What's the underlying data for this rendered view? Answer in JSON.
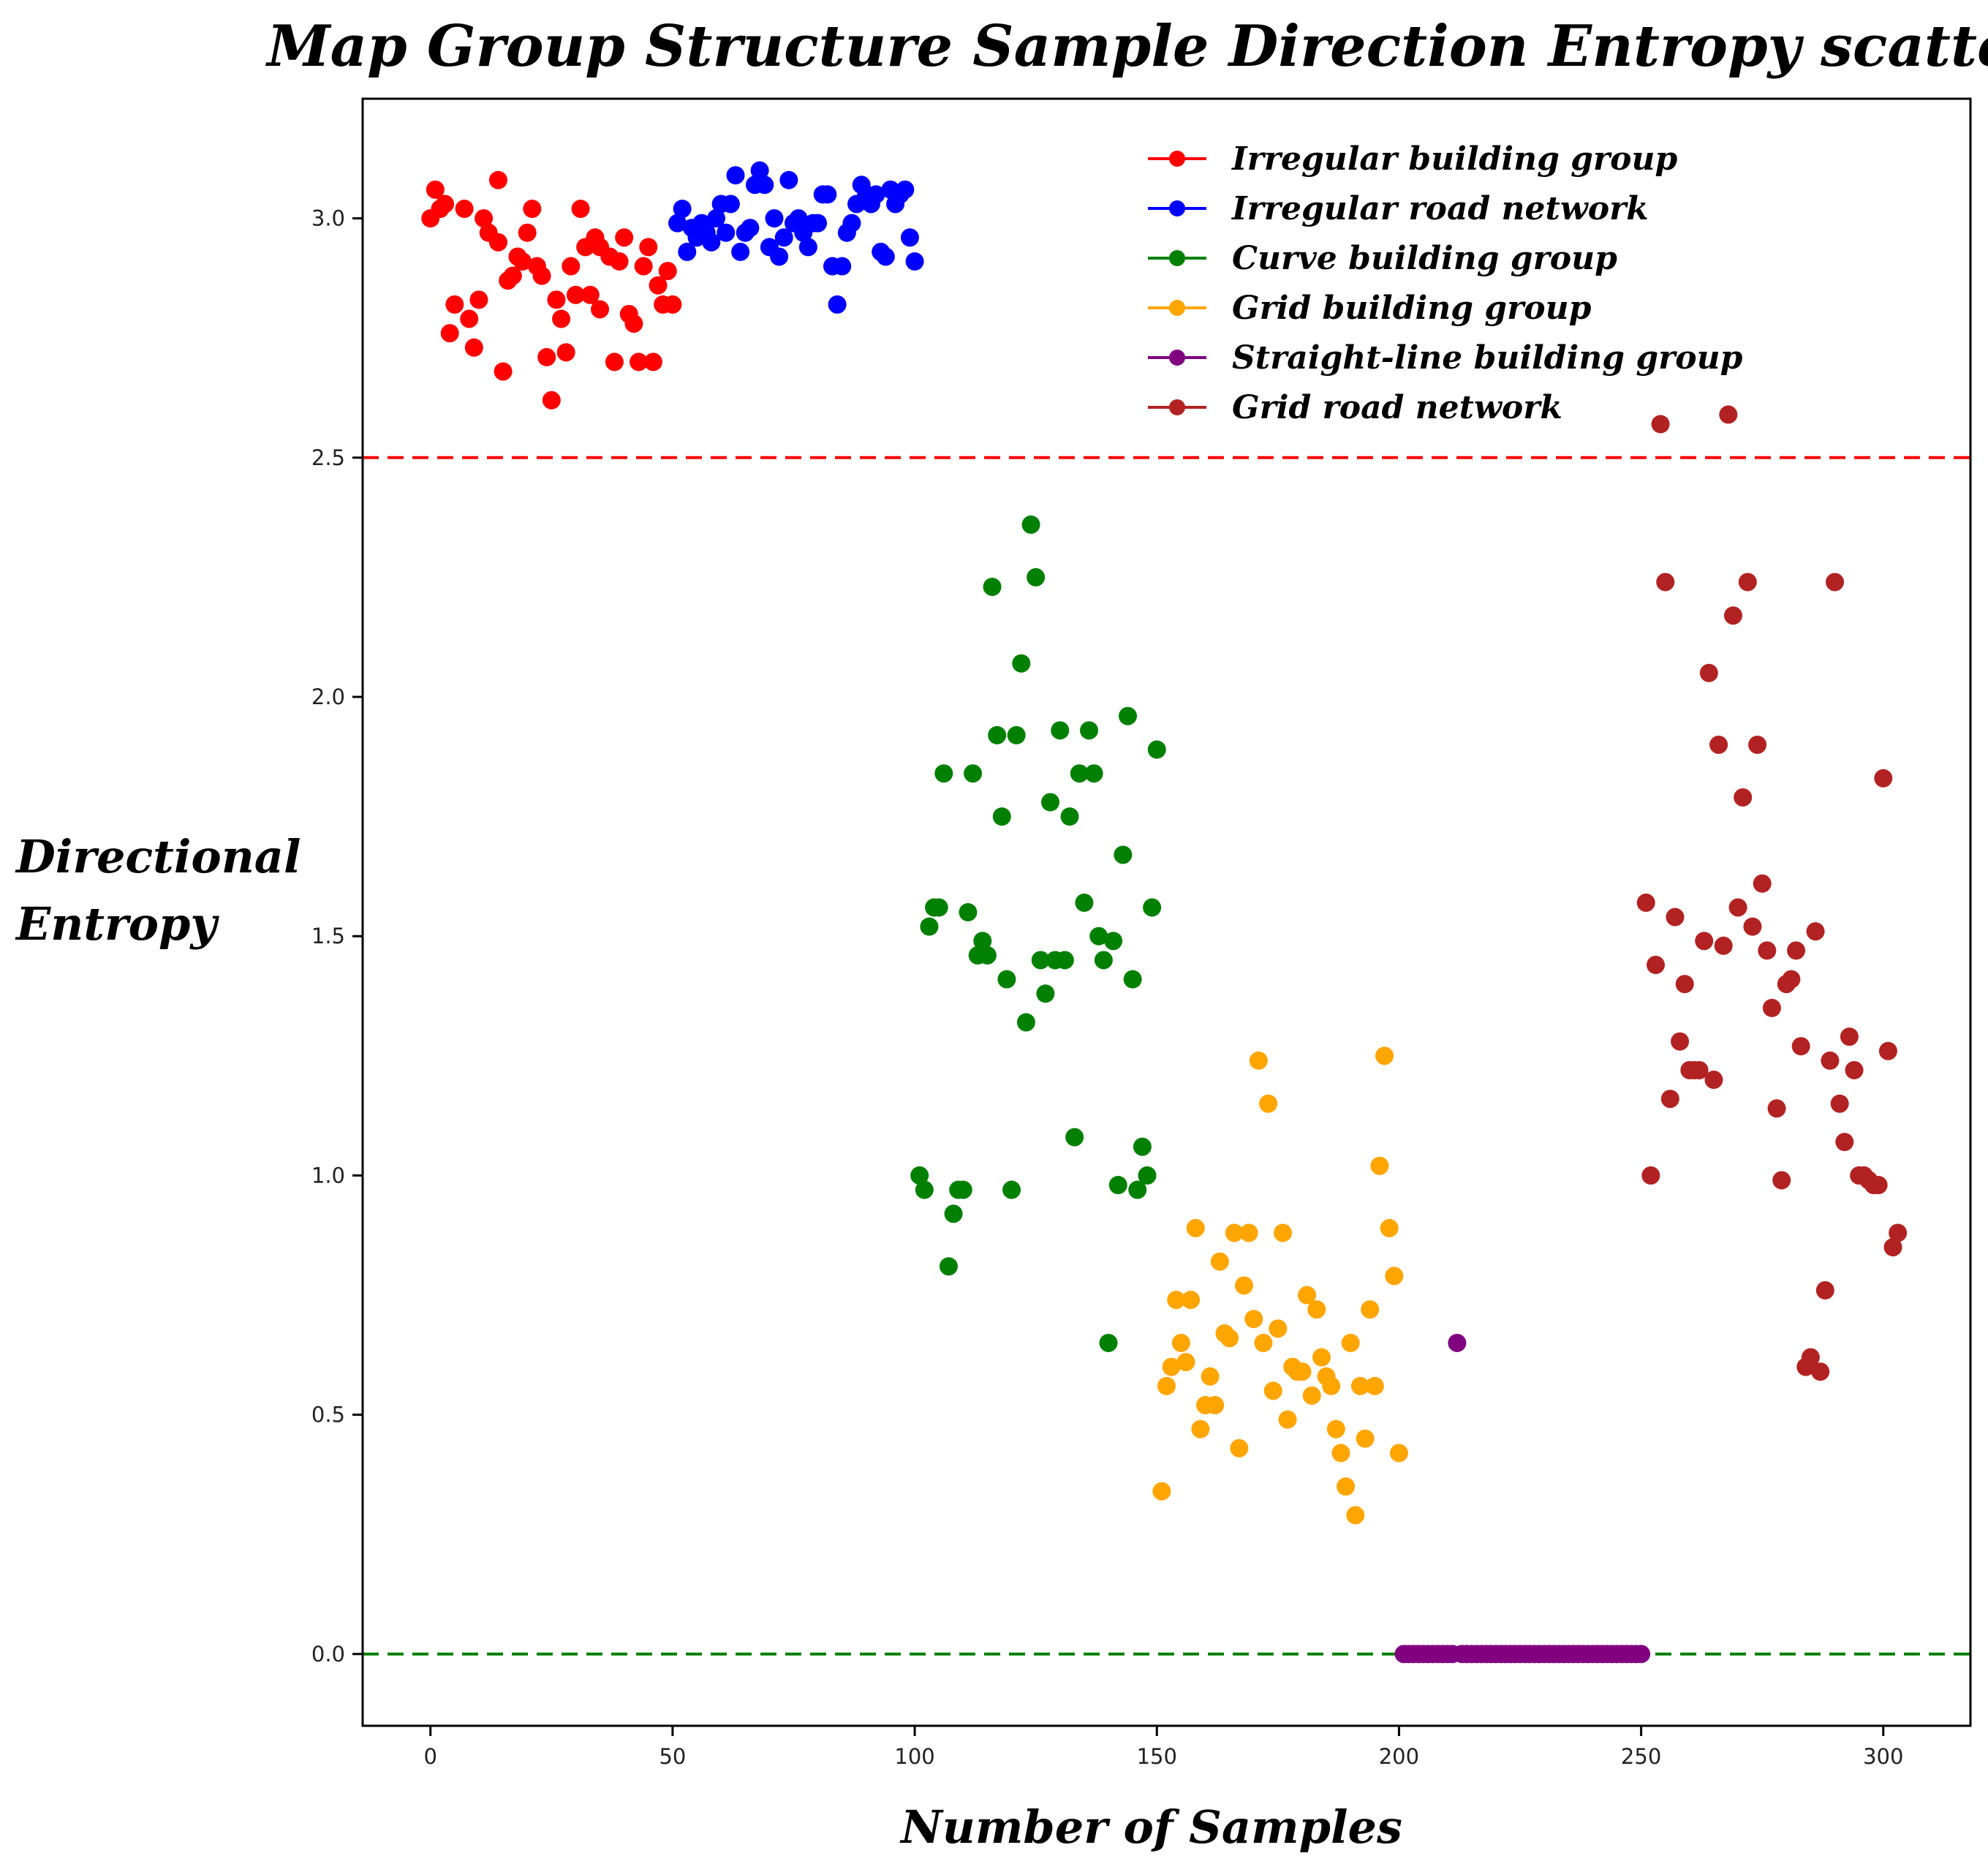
{
  "chart_data": {
    "type": "scatter",
    "title": "Map Group Structure Sample Direction Entropy scatter",
    "xlabel": "Number of Samples",
    "ylabel_lines": [
      "Directional",
      "Entropy"
    ],
    "xlim": [
      -14,
      318
    ],
    "ylim": [
      -0.15,
      3.25
    ],
    "xticks": [
      0,
      50,
      100,
      150,
      200,
      250,
      300
    ],
    "yticks": [
      0.0,
      0.5,
      1.0,
      1.5,
      2.0,
      2.5,
      3.0
    ],
    "xtick_labels": [
      "0",
      "50",
      "100",
      "150",
      "200",
      "250",
      "300"
    ],
    "ytick_labels": [
      "0.0",
      "0.5",
      "1.0",
      "1.5",
      "2.0",
      "2.5",
      "3.0"
    ],
    "grid": false,
    "legend_position": "top-right",
    "reference_lines": [
      {
        "y": 2.5,
        "color": "#ff0000",
        "style": "dashed"
      },
      {
        "y": 0.0,
        "color": "#008000",
        "style": "dashed"
      }
    ],
    "series": [
      {
        "name": "Irregular building group",
        "color": "#ff0000",
        "points": [
          [
            0,
            3.0
          ],
          [
            1,
            3.06
          ],
          [
            2,
            3.02
          ],
          [
            3,
            3.03
          ],
          [
            4,
            2.76
          ],
          [
            5,
            2.82
          ],
          [
            7,
            3.02
          ],
          [
            8,
            2.79
          ],
          [
            9,
            2.73
          ],
          [
            10,
            2.83
          ],
          [
            11,
            3.0
          ],
          [
            12,
            2.97
          ],
          [
            14,
            2.95
          ],
          [
            14,
            3.08
          ],
          [
            15,
            2.68
          ],
          [
            16,
            2.87
          ],
          [
            17,
            2.88
          ],
          [
            18,
            2.92
          ],
          [
            19,
            2.91
          ],
          [
            20,
            2.97
          ],
          [
            21,
            3.02
          ],
          [
            22,
            2.9
          ],
          [
            23,
            2.88
          ],
          [
            24,
            2.71
          ],
          [
            25,
            2.62
          ],
          [
            26,
            2.83
          ],
          [
            27,
            2.79
          ],
          [
            28,
            2.72
          ],
          [
            29,
            2.9
          ],
          [
            30,
            2.84
          ],
          [
            31,
            3.02
          ],
          [
            32,
            2.94
          ],
          [
            33,
            2.84
          ],
          [
            34,
            2.96
          ],
          [
            35,
            2.94
          ],
          [
            35,
            2.81
          ],
          [
            37,
            2.92
          ],
          [
            38,
            2.7
          ],
          [
            39,
            2.91
          ],
          [
            40,
            2.96
          ],
          [
            41,
            2.8
          ],
          [
            42,
            2.78
          ],
          [
            43,
            2.7
          ],
          [
            44,
            2.9
          ],
          [
            45,
            2.94
          ],
          [
            46,
            2.7
          ],
          [
            47,
            2.86
          ],
          [
            48,
            2.82
          ],
          [
            49,
            2.89
          ],
          [
            50,
            2.82
          ]
        ]
      },
      {
        "name": "Irregular road network",
        "color": "#0000ff",
        "points": [
          [
            51,
            2.99
          ],
          [
            52,
            3.02
          ],
          [
            53,
            2.93
          ],
          [
            54,
            2.98
          ],
          [
            55,
            2.96
          ],
          [
            56,
            2.99
          ],
          [
            57,
            2.97
          ],
          [
            58,
            2.95
          ],
          [
            59,
            3.0
          ],
          [
            60,
            3.03
          ],
          [
            61,
            2.97
          ],
          [
            62,
            3.03
          ],
          [
            63,
            3.09
          ],
          [
            64,
            2.93
          ],
          [
            65,
            2.97
          ],
          [
            66,
            2.98
          ],
          [
            67,
            3.07
          ],
          [
            68,
            3.1
          ],
          [
            69,
            3.07
          ],
          [
            70,
            2.94
          ],
          [
            71,
            3.0
          ],
          [
            72,
            2.92
          ],
          [
            73,
            2.96
          ],
          [
            74,
            3.08
          ],
          [
            75,
            2.99
          ],
          [
            76,
            3.0
          ],
          [
            77,
            2.97
          ],
          [
            78,
            2.94
          ],
          [
            79,
            2.99
          ],
          [
            80,
            2.99
          ],
          [
            81,
            3.05
          ],
          [
            82,
            3.05
          ],
          [
            83,
            2.9
          ],
          [
            84,
            2.82
          ],
          [
            85,
            2.9
          ],
          [
            86,
            2.97
          ],
          [
            87,
            2.99
          ],
          [
            88,
            3.03
          ],
          [
            89,
            3.07
          ],
          [
            90,
            3.05
          ],
          [
            91,
            3.03
          ],
          [
            92,
            3.05
          ],
          [
            93,
            2.93
          ],
          [
            94,
            2.92
          ],
          [
            95,
            3.06
          ],
          [
            96,
            3.03
          ],
          [
            97,
            3.05
          ],
          [
            98,
            3.06
          ],
          [
            99,
            2.96
          ],
          [
            100,
            2.91
          ]
        ]
      },
      {
        "name": "Curve building group",
        "color": "#008000",
        "points": [
          [
            101,
            1.0
          ],
          [
            102,
            0.97
          ],
          [
            103,
            1.52
          ],
          [
            104,
            1.56
          ],
          [
            105,
            1.56
          ],
          [
            106,
            1.84
          ],
          [
            107,
            0.81
          ],
          [
            108,
            0.92
          ],
          [
            109,
            0.97
          ],
          [
            110,
            0.97
          ],
          [
            111,
            1.55
          ],
          [
            112,
            1.84
          ],
          [
            113,
            1.46
          ],
          [
            114,
            1.49
          ],
          [
            115,
            1.46
          ],
          [
            116,
            2.23
          ],
          [
            117,
            1.92
          ],
          [
            118,
            1.75
          ],
          [
            119,
            1.41
          ],
          [
            120,
            0.97
          ],
          [
            121,
            1.92
          ],
          [
            122,
            2.07
          ],
          [
            123,
            1.32
          ],
          [
            124,
            2.36
          ],
          [
            125,
            2.25
          ],
          [
            126,
            1.45
          ],
          [
            127,
            1.38
          ],
          [
            128,
            1.78
          ],
          [
            129,
            1.45
          ],
          [
            130,
            1.93
          ],
          [
            131,
            1.45
          ],
          [
            132,
            1.75
          ],
          [
            133,
            1.08
          ],
          [
            134,
            1.84
          ],
          [
            135,
            1.57
          ],
          [
            136,
            1.93
          ],
          [
            137,
            1.84
          ],
          [
            138,
            1.5
          ],
          [
            139,
            1.45
          ],
          [
            140,
            0.65
          ],
          [
            141,
            1.49
          ],
          [
            142,
            0.98
          ],
          [
            143,
            1.67
          ],
          [
            144,
            1.96
          ],
          [
            145,
            1.41
          ],
          [
            146,
            0.97
          ],
          [
            147,
            1.06
          ],
          [
            148,
            1.0
          ],
          [
            149,
            1.56
          ],
          [
            150,
            1.89
          ]
        ]
      },
      {
        "name": "Grid building group",
        "color": "#ffa500",
        "points": [
          [
            151,
            0.34
          ],
          [
            152,
            0.56
          ],
          [
            153,
            0.6
          ],
          [
            154,
            0.74
          ],
          [
            155,
            0.65
          ],
          [
            156,
            0.61
          ],
          [
            157,
            0.74
          ],
          [
            158,
            0.89
          ],
          [
            159,
            0.47
          ],
          [
            160,
            0.52
          ],
          [
            161,
            0.58
          ],
          [
            162,
            0.52
          ],
          [
            163,
            0.82
          ],
          [
            164,
            0.67
          ],
          [
            165,
            0.66
          ],
          [
            166,
            0.88
          ],
          [
            167,
            0.43
          ],
          [
            168,
            0.77
          ],
          [
            169,
            0.88
          ],
          [
            170,
            0.7
          ],
          [
            171,
            1.24
          ],
          [
            172,
            0.65
          ],
          [
            173,
            1.15
          ],
          [
            174,
            0.55
          ],
          [
            175,
            0.68
          ],
          [
            176,
            0.88
          ],
          [
            177,
            0.49
          ],
          [
            178,
            0.6
          ],
          [
            179,
            0.59
          ],
          [
            180,
            0.59
          ],
          [
            181,
            0.75
          ],
          [
            182,
            0.54
          ],
          [
            183,
            0.72
          ],
          [
            184,
            0.62
          ],
          [
            185,
            0.58
          ],
          [
            186,
            0.56
          ],
          [
            187,
            0.47
          ],
          [
            188,
            0.42
          ],
          [
            189,
            0.35
          ],
          [
            190,
            0.65
          ],
          [
            191,
            0.29
          ],
          [
            192,
            0.56
          ],
          [
            193,
            0.45
          ],
          [
            194,
            0.72
          ],
          [
            195,
            0.56
          ],
          [
            196,
            1.02
          ],
          [
            197,
            1.25
          ],
          [
            198,
            0.89
          ],
          [
            199,
            0.79
          ],
          [
            200,
            0.42
          ]
        ]
      },
      {
        "name": "Straight-line building group",
        "color": "#800080",
        "points": [
          [
            201,
            0.0
          ],
          [
            202,
            0.0
          ],
          [
            203,
            0.0
          ],
          [
            204,
            0.0
          ],
          [
            205,
            0.0
          ],
          [
            206,
            0.0
          ],
          [
            207,
            0.0
          ],
          [
            208,
            0.0
          ],
          [
            209,
            0.0
          ],
          [
            210,
            0.0
          ],
          [
            211,
            0.0
          ],
          [
            212,
            0.65
          ],
          [
            213,
            0.0
          ],
          [
            214,
            0.0
          ],
          [
            215,
            0.0
          ],
          [
            216,
            0.0
          ],
          [
            217,
            0.0
          ],
          [
            218,
            0.0
          ],
          [
            219,
            0.0
          ],
          [
            220,
            0.0
          ],
          [
            221,
            0.0
          ],
          [
            222,
            0.0
          ],
          [
            223,
            0.0
          ],
          [
            224,
            0.0
          ],
          [
            225,
            0.0
          ],
          [
            226,
            0.0
          ],
          [
            227,
            0.0
          ],
          [
            228,
            0.0
          ],
          [
            229,
            0.0
          ],
          [
            230,
            0.0
          ],
          [
            231,
            0.0
          ],
          [
            232,
            0.0
          ],
          [
            233,
            0.0
          ],
          [
            234,
            0.0
          ],
          [
            235,
            0.0
          ],
          [
            236,
            0.0
          ],
          [
            237,
            0.0
          ],
          [
            238,
            0.0
          ],
          [
            239,
            0.0
          ],
          [
            240,
            0.0
          ],
          [
            241,
            0.0
          ],
          [
            242,
            0.0
          ],
          [
            243,
            0.0
          ],
          [
            244,
            0.0
          ],
          [
            245,
            0.0
          ],
          [
            246,
            0.0
          ],
          [
            247,
            0.0
          ],
          [
            248,
            0.0
          ],
          [
            249,
            0.0
          ],
          [
            250,
            0.0
          ]
        ]
      },
      {
        "name": "Grid road network",
        "color": "#b22222",
        "points": [
          [
            251,
            1.57
          ],
          [
            252,
            1.0
          ],
          [
            253,
            1.44
          ],
          [
            254,
            2.57
          ],
          [
            255,
            2.24
          ],
          [
            256,
            1.16
          ],
          [
            257,
            1.54
          ],
          [
            258,
            1.28
          ],
          [
            259,
            1.4
          ],
          [
            260,
            1.22
          ],
          [
            261,
            1.22
          ],
          [
            262,
            1.22
          ],
          [
            263,
            1.49
          ],
          [
            264,
            2.05
          ],
          [
            265,
            1.2
          ],
          [
            266,
            1.9
          ],
          [
            267,
            1.48
          ],
          [
            268,
            2.59
          ],
          [
            269,
            2.17
          ],
          [
            270,
            1.56
          ],
          [
            271,
            1.79
          ],
          [
            272,
            2.24
          ],
          [
            273,
            1.52
          ],
          [
            274,
            1.9
          ],
          [
            275,
            1.61
          ],
          [
            276,
            1.47
          ],
          [
            277,
            1.35
          ],
          [
            278,
            1.14
          ],
          [
            279,
            0.99
          ],
          [
            280,
            1.4
          ],
          [
            281,
            1.41
          ],
          [
            282,
            1.47
          ],
          [
            283,
            1.27
          ],
          [
            284,
            0.6
          ],
          [
            285,
            0.62
          ],
          [
            286,
            1.51
          ],
          [
            287,
            0.59
          ],
          [
            288,
            0.76
          ],
          [
            289,
            1.24
          ],
          [
            290,
            2.24
          ],
          [
            291,
            1.15
          ],
          [
            292,
            1.07
          ],
          [
            293,
            1.29
          ],
          [
            294,
            1.22
          ],
          [
            295,
            1.0
          ],
          [
            296,
            1.0
          ],
          [
            297,
            0.99
          ],
          [
            298,
            0.98
          ],
          [
            299,
            0.98
          ],
          [
            300,
            1.83
          ],
          [
            301,
            1.26
          ],
          [
            302,
            0.85
          ],
          [
            303,
            0.88
          ]
        ]
      }
    ]
  }
}
